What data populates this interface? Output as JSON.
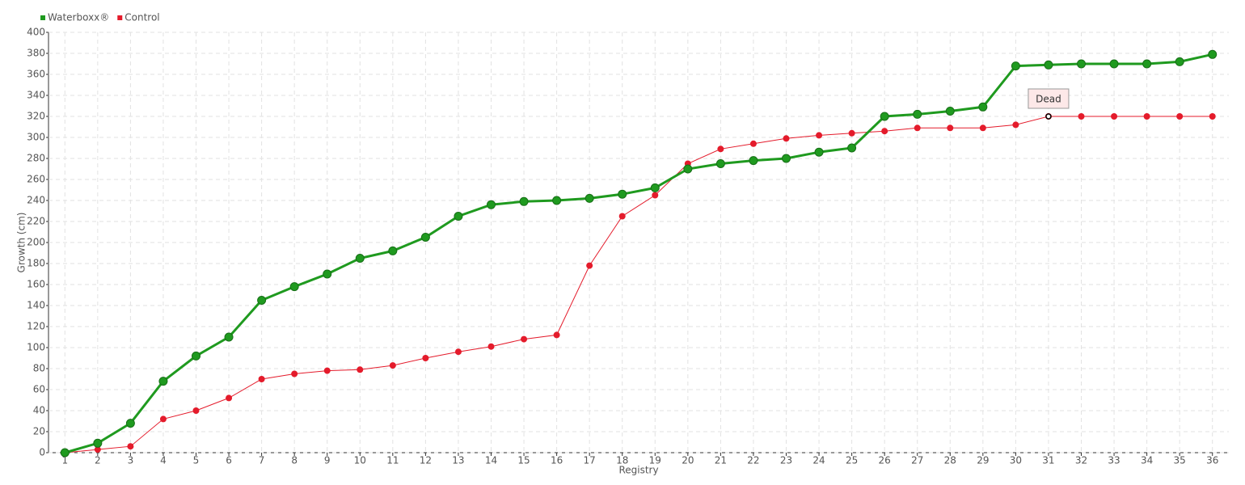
{
  "chart_data": {
    "type": "line",
    "legend": "top-left",
    "grid": true,
    "x_label": "Registry",
    "y_label": "Growth (cm)",
    "categories": [
      1,
      2,
      3,
      4,
      5,
      6,
      7,
      8,
      9,
      10,
      11,
      12,
      13,
      14,
      15,
      16,
      17,
      18,
      19,
      20,
      21,
      22,
      23,
      24,
      25,
      26,
      27,
      28,
      29,
      30,
      31,
      32,
      33,
      34,
      35,
      36
    ],
    "series": [
      {
        "name": "Waterboxx®",
        "color": "#1f9a1f",
        "values": [
          0,
          9,
          28,
          68,
          92,
          110,
          145,
          158,
          170,
          185,
          192,
          205,
          225,
          236,
          239,
          240,
          242,
          246,
          252,
          270,
          275,
          278,
          280,
          286,
          290,
          320,
          322,
          325,
          329,
          368,
          369,
          370,
          370,
          370,
          372,
          379
        ]
      },
      {
        "name": "Control",
        "color": "#e41b2b",
        "values": [
          0,
          3,
          6,
          32,
          40,
          52,
          70,
          75,
          78,
          79,
          83,
          90,
          96,
          101,
          108,
          112,
          178,
          225,
          245,
          275,
          289,
          294,
          299,
          302,
          304,
          306,
          309,
          309,
          309,
          312,
          320,
          320,
          320,
          320,
          320,
          320
        ]
      }
    ],
    "annotation": {
      "text": "Dead",
      "x": 31
    },
    "ylim": [
      0,
      400
    ],
    "yticks": [
      0,
      20,
      40,
      60,
      80,
      100,
      120,
      140,
      160,
      180,
      200,
      220,
      240,
      260,
      280,
      300,
      320,
      340,
      360,
      380,
      400
    ]
  }
}
